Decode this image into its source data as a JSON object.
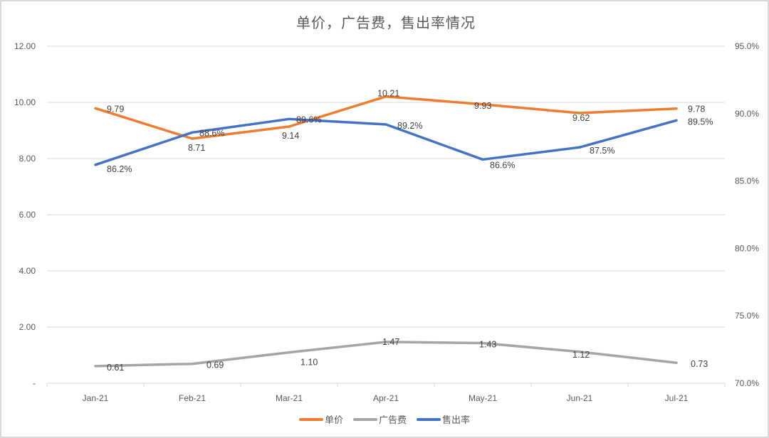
{
  "title": "单价，广告费，售出率情况",
  "chart_data": {
    "type": "line",
    "title": "单价，广告费，售出率情况",
    "categories": [
      "Jan-21",
      "Feb-21",
      "Mar-21",
      "Apr-21",
      "May-21",
      "Jun-21",
      "Jul-21"
    ],
    "series": [
      {
        "name": "单价",
        "axis": "left",
        "color": "#ED7D31",
        "values": [
          9.79,
          8.71,
          9.14,
          10.21,
          9.93,
          9.62,
          9.78
        ],
        "labels": [
          "9.79",
          "8.71",
          "9.14",
          "10.21",
          "9.93",
          "9.62",
          "9.78"
        ]
      },
      {
        "name": "广告费",
        "axis": "left",
        "color": "#A5A5A5",
        "values": [
          0.61,
          0.69,
          1.1,
          1.47,
          1.43,
          1.12,
          0.73
        ],
        "labels": [
          "0.61",
          "0.69",
          "1.10",
          "1.47",
          "1.43",
          "1.12",
          "0.73"
        ]
      },
      {
        "name": "售出率",
        "axis": "right",
        "color": "#4472C4",
        "values": [
          0.862,
          0.886,
          0.896,
          0.892,
          0.866,
          0.875,
          0.895
        ],
        "labels": [
          "86.2%",
          "88.6%",
          "89.6%",
          "89.2%",
          "86.6%",
          "87.5%",
          "89.5%"
        ]
      }
    ],
    "y_left": {
      "range": [
        0,
        12
      ],
      "ticks": [
        "-",
        "2.00",
        "4.00",
        "6.00",
        "8.00",
        "10.00",
        "12.00"
      ]
    },
    "y_right": {
      "range": [
        0.7,
        0.95
      ],
      "ticks": [
        "70.0%",
        "75.0%",
        "80.0%",
        "85.0%",
        "90.0%",
        "95.0%"
      ]
    },
    "xlabel": "",
    "ylabel": "",
    "grid": true,
    "legend_position": "bottom"
  },
  "legend": [
    {
      "label": "单价",
      "color": "#ED7D31"
    },
    {
      "label": "广告费",
      "color": "#A5A5A5"
    },
    {
      "label": "售出率",
      "color": "#4472C4"
    }
  ]
}
